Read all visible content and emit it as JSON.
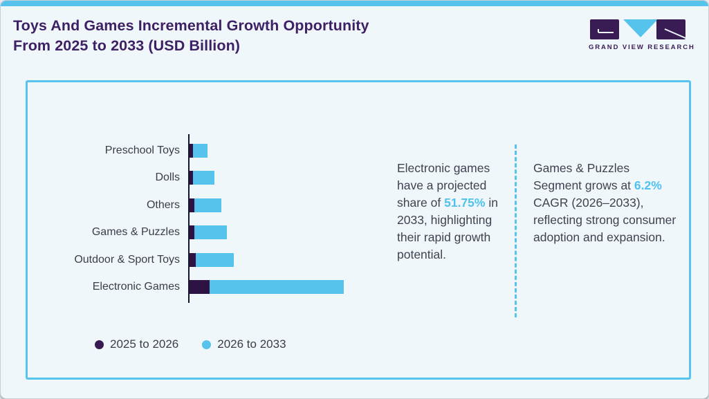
{
  "header": {
    "title_line1": "Toys And Games Incremental Growth Opportunity",
    "title_line2": "From 2025 to 2033 (USD Billion)",
    "logo_text": "GRAND VIEW RESEARCH"
  },
  "colors": {
    "accent_blue": "#55C3EC",
    "highlight_blue_text": "#4FC2EF",
    "bar_dark_purple": "#2E1243",
    "title_purple": "#3E2065",
    "body_text": "#3C3C49",
    "background": "#F0F7FB",
    "panel_border_blue": "#56C4EE"
  },
  "chart_data": {
    "type": "bar",
    "orientation": "horizontal",
    "stacked": true,
    "title": "Toys And Games Incremental Growth Opportunity From 2025 to 2033 (USD Billion)",
    "xlabel": "",
    "ylabel": "",
    "axis_values_shown": false,
    "grid": false,
    "legend_position": "bottom",
    "units": "relative units (axis unlabeled; values estimated from bar lengths)",
    "categories": [
      "Preschool Toys",
      "Dolls",
      "Others",
      "Games & Puzzles",
      "Outdoor & Sport Toys",
      "Electronic Games"
    ],
    "series": [
      {
        "name": "2025 to 2026",
        "color": "#2E1243",
        "values": [
          5,
          5,
          7,
          7,
          9,
          29
        ]
      },
      {
        "name": "2026 to 2033",
        "color": "#55C3EC",
        "values": [
          21,
          31,
          39,
          47,
          55,
          194
        ]
      }
    ]
  },
  "callouts": [
    {
      "before": "Electronic games have a projected share of ",
      "highlight": "51.75%",
      "after": " in 2033, highlighting their rapid growth potential."
    },
    {
      "before": "Games & Puzzles Segment grows at ",
      "highlight": "6.2%",
      "after": " CAGR (2026–2033), reflecting strong consumer adoption and expansion."
    }
  ]
}
